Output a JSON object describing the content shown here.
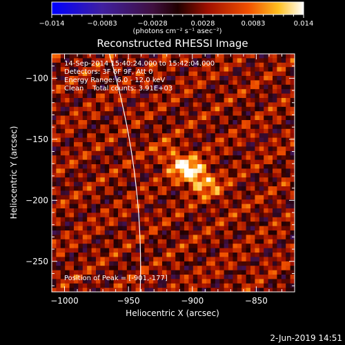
{
  "chart_data": {
    "type": "heatmap",
    "title": "Reconstructed RHESSI Image",
    "xlabel": "Heliocentric X (arcsec)",
    "ylabel": "Heliocentric Y (arcsec)",
    "xlim": [
      -1010,
      -820
    ],
    "ylim": [
      -275,
      -80
    ],
    "xticks": [
      -1000,
      -950,
      -900,
      -850
    ],
    "yticks": [
      -100,
      -150,
      -200,
      -250
    ],
    "colorbar": {
      "range": [
        -0.014,
        0.014
      ],
      "ticks": [
        "−0.014",
        "−0.0083",
        "−0.0028",
        "0.0028",
        "0.0083",
        "0.014"
      ],
      "label": "(photons cm⁻² s⁻¹ asec⁻²)"
    },
    "info": [
      "14-Sep-2014 15:40:24.000 to 15:42:04.000",
      "Detectors: 3F 6F 9F, Att 0",
      "Energy Range: 6.0 - 12.0 keV",
      "Clean    Total counts: 3.91E+03"
    ],
    "peak_label": "Position of Peak = [-901,-177]",
    "peak": [
      -901,
      -177
    ],
    "footer": "2-Jun-2019 14:51"
  },
  "colors": {
    "background": "#000000",
    "foreground": "#ffffff",
    "limb": "#ffffff"
  }
}
